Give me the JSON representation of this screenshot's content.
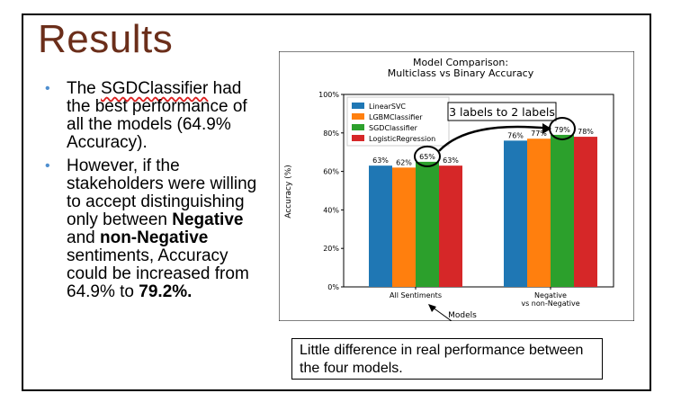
{
  "slide": {
    "title": "Results",
    "bullets": [
      {
        "pre": "The ",
        "highlight": "SGDClassifier",
        "post": " had the best performance of all the models (64.9% Accuracy)."
      },
      {
        "pre": "However, if the stakeholders were willing to accept distinguishing only between ",
        "b1": "Negative",
        "mid1": " and ",
        "b2": "non-Negative",
        "mid2": " sentiments, Accuracy could be increased from 64.9% to ",
        "b3": "79.2%."
      }
    ],
    "callout": "3 labels to 2 labels",
    "note": "Little difference in real performance between the four models."
  },
  "colors": {
    "title": "#6b2e1a",
    "bullet": "#4f8fcf"
  },
  "chart_data": {
    "type": "bar",
    "title": "Model Comparison:",
    "subtitle": "Multiclass vs Binary Accuracy",
    "xlabel": "Models",
    "ylabel": "Accuracy (%)",
    "categories": [
      "All Sentiments",
      "Negative\nvs non-Negative"
    ],
    "ylim": [
      0,
      100
    ],
    "yticks": [
      "0%",
      "20%",
      "40%",
      "60%",
      "80%",
      "100%"
    ],
    "legend_position": "top-left",
    "series": [
      {
        "name": "LinearSVC",
        "color": "#1f77b4",
        "values": [
          63,
          76
        ],
        "labels": [
          "63%",
          "76%"
        ]
      },
      {
        "name": "LGBMClassifier",
        "color": "#ff7f0e",
        "values": [
          62,
          77
        ],
        "labels": [
          "62%",
          "77%"
        ]
      },
      {
        "name": "SGDClassifier",
        "color": "#2ca02c",
        "values": [
          65,
          79
        ],
        "labels": [
          "65%",
          "79%"
        ]
      },
      {
        "name": "LogisticRegression",
        "color": "#d62728",
        "values": [
          63,
          78
        ],
        "labels": [
          "63%",
          "78%"
        ]
      }
    ]
  }
}
